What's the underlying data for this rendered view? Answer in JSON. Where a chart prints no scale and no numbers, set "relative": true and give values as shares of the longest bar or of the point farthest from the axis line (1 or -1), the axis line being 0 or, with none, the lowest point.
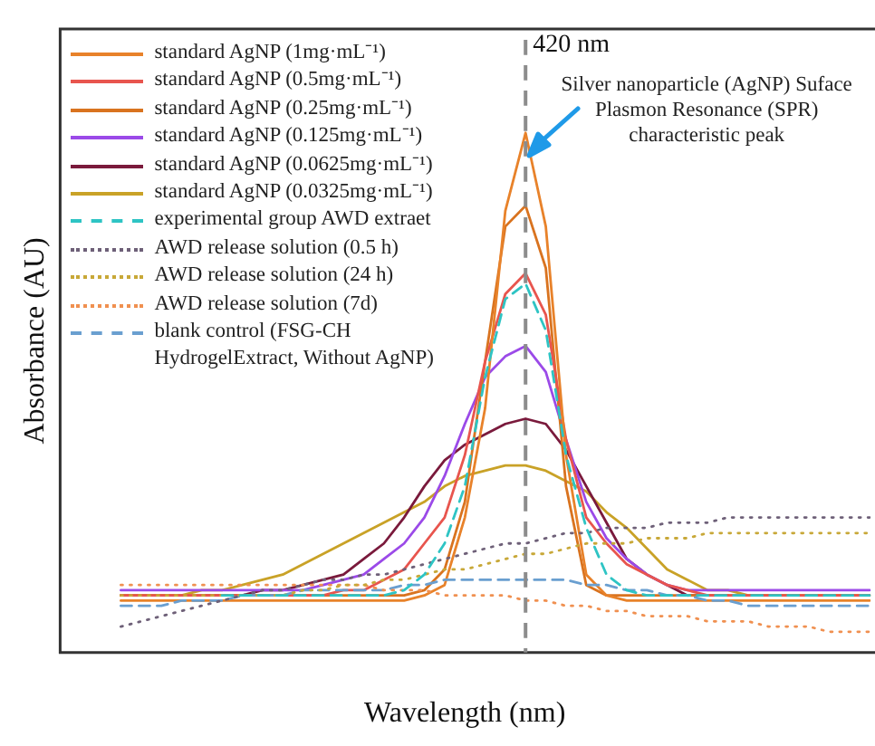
{
  "chart_data": {
    "type": "line",
    "relative": true,
    "xlabel": "Wavelength (nm)",
    "ylabel": "Absorbance (AU)",
    "legend": "top left",
    "marker": "none",
    "categories": [
      null,
      null,
      null,
      null,
      null,
      null,
      null,
      null,
      null,
      null,
      null,
      null,
      null,
      null,
      null,
      null,
      null,
      null,
      null,
      null,
      null,
      null,
      null,
      null,
      null,
      null,
      null,
      null,
      null,
      null,
      null,
      null,
      null,
      null,
      null,
      null,
      null,
      null,
      null,
      null,
      null
    ],
    "annotations": [
      "420 nm",
      "Silver nanoparticle (AgNP) Suface Plasmon Resonance (SPR) characteristic peak"
    ],
    "series": [
      {
        "name": "standard AgNP (1mg·mL⁻¹)",
        "color": "#e8822a",
        "line_style": "solid",
        "values": [
          null,
          null,
          null,
          0.1,
          0.1,
          0.1,
          0.1,
          0.1,
          0.1,
          0.1,
          0.1,
          0.1,
          0.1,
          0.1,
          0.1,
          0.1,
          0.1,
          0.1,
          0.11,
          0.13,
          0.26,
          0.47,
          0.85,
          1,
          0.82,
          0.38,
          0.15,
          0.11,
          0.1,
          0.1,
          0.1,
          0.1,
          0.1,
          0.1,
          0.1,
          0.1,
          0.1,
          0.1,
          0.1,
          0.1,
          0.1
        ]
      },
      {
        "name": "standard AgNP (0.5mg·mL⁻¹)",
        "color": "#e8554e",
        "line_style": "solid",
        "values": [
          null,
          null,
          null,
          0.11,
          0.11,
          0.11,
          0.11,
          0.11,
          0.11,
          0.11,
          0.11,
          0.11,
          0.11,
          0.11,
          0.12,
          0.12,
          0.14,
          0.16,
          0.21,
          0.26,
          0.38,
          0.56,
          0.69,
          0.73,
          0.65,
          0.41,
          0.26,
          0.21,
          0.17,
          0.15,
          0.13,
          0.12,
          0.11,
          0.11,
          0.11,
          0.11,
          0.11,
          0.11,
          0.11,
          0.11,
          0.11
        ]
      },
      {
        "name": "standard AgNP (0.25mg·mL⁻¹)",
        "color": "#d9731f",
        "line_style": "solid",
        "values": [
          null,
          null,
          null,
          0.11,
          0.11,
          0.11,
          0.11,
          0.11,
          0.11,
          0.11,
          0.11,
          0.11,
          0.11,
          0.11,
          0.11,
          0.11,
          0.11,
          0.11,
          0.12,
          0.16,
          0.29,
          0.56,
          0.82,
          0.86,
          0.74,
          0.32,
          0.13,
          0.11,
          0.11,
          0.11,
          0.11,
          0.11,
          0.11,
          0.11,
          0.11,
          0.11,
          0.11,
          0.11,
          0.11,
          0.11,
          0.11
        ]
      },
      {
        "name": "standard AgNP (0.125mg·mL⁻¹)",
        "color": "#9b4ae8",
        "line_style": "solid",
        "values": [
          null,
          null,
          null,
          0.12,
          0.12,
          0.12,
          0.12,
          0.12,
          0.12,
          0.12,
          0.12,
          0.12,
          0.12,
          0.13,
          0.14,
          0.15,
          0.18,
          0.21,
          0.26,
          0.34,
          0.44,
          0.53,
          0.57,
          0.59,
          0.54,
          0.41,
          0.29,
          0.22,
          0.18,
          0.15,
          0.13,
          0.12,
          0.12,
          0.12,
          0.12,
          0.12,
          0.12,
          0.12,
          0.12,
          0.12,
          0.12
        ]
      },
      {
        "name": "standard AgNP (0.0625mg·mL⁻¹)",
        "color": "#7a1a3c",
        "line_style": "solid",
        "values": [
          null,
          null,
          null,
          null,
          null,
          null,
          null,
          0.11,
          0.11,
          0.11,
          0.12,
          0.12,
          0.13,
          0.14,
          0.15,
          0.18,
          0.21,
          0.26,
          0.32,
          0.37,
          0.4,
          0.42,
          0.44,
          0.45,
          0.44,
          0.39,
          0.32,
          0.25,
          0.18,
          0.15,
          0.13,
          0.11,
          0.11,
          0.11,
          null,
          null,
          null,
          null,
          null,
          null,
          null
        ]
      },
      {
        "name": "standard AgNP (0.0325mg·mL⁻¹)",
        "color": "#c9a227",
        "line_style": "solid",
        "values": [
          null,
          null,
          null,
          0.11,
          0.11,
          0.11,
          0.11,
          0.12,
          0.12,
          0.13,
          0.14,
          0.15,
          0.17,
          0.19,
          0.21,
          0.23,
          0.25,
          0.27,
          0.29,
          0.32,
          0.34,
          0.35,
          0.36,
          0.36,
          0.35,
          0.33,
          0.31,
          0.27,
          0.24,
          0.2,
          0.16,
          0.14,
          0.12,
          0.12,
          0.11,
          0.11,
          0.11,
          0.11,
          0.11,
          0.11,
          0.11
        ]
      },
      {
        "name": "experimental group AWD extraet",
        "color": "#2ec4c4",
        "line_style": "dashed",
        "values": [
          null,
          null,
          null,
          null,
          null,
          null,
          null,
          null,
          0.11,
          0.11,
          0.11,
          0.11,
          0.11,
          0.11,
          0.11,
          0.11,
          0.11,
          0.12,
          0.15,
          0.21,
          0.32,
          0.53,
          0.68,
          0.71,
          0.62,
          0.38,
          0.24,
          0.15,
          0.12,
          0.11,
          0.11,
          0.11,
          0.11,
          0.11,
          0.11,
          0.11,
          0.11,
          0.11,
          0.11,
          0.11,
          0.11
        ]
      },
      {
        "name": "AWD release solution (0.5 h)",
        "color": "#6e6078",
        "line_style": "dotted",
        "values": [
          null,
          null,
          null,
          0.05,
          0.06,
          0.07,
          0.08,
          0.09,
          0.1,
          0.11,
          0.12,
          0.12,
          0.13,
          0.14,
          0.14,
          0.15,
          0.15,
          0.16,
          0.17,
          0.18,
          0.19,
          0.2,
          0.21,
          0.21,
          0.22,
          0.23,
          0.23,
          0.24,
          0.24,
          0.24,
          0.25,
          0.25,
          0.25,
          0.26,
          0.26,
          0.26,
          0.26,
          0.26,
          0.26,
          0.26,
          0.26
        ]
      },
      {
        "name": "AWD release solution (24 h)",
        "color": "#c8a838",
        "line_style": "dotted",
        "values": [
          null,
          null,
          null,
          0.11,
          0.11,
          0.11,
          0.11,
          0.11,
          0.11,
          0.11,
          0.11,
          0.11,
          0.12,
          0.12,
          0.13,
          0.13,
          0.14,
          0.14,
          0.15,
          0.16,
          0.16,
          0.17,
          0.18,
          0.19,
          0.19,
          0.2,
          0.21,
          0.21,
          0.21,
          0.22,
          0.22,
          0.22,
          0.23,
          0.23,
          0.23,
          0.23,
          0.23,
          0.23,
          0.23,
          0.23,
          0.23
        ]
      },
      {
        "name": "AWD release solution (7d)",
        "color": "#f09050",
        "line_style": "dotted",
        "values": [
          null,
          null,
          null,
          0.13,
          0.13,
          0.13,
          0.13,
          0.13,
          0.13,
          0.13,
          0.13,
          0.13,
          0.13,
          0.13,
          0.13,
          0.13,
          0.12,
          0.12,
          0.12,
          0.11,
          0.11,
          0.11,
          0.11,
          0.1,
          0.1,
          0.09,
          0.09,
          0.08,
          0.08,
          0.07,
          0.07,
          0.07,
          0.06,
          0.06,
          0.06,
          0.05,
          0.05,
          0.05,
          0.04,
          0.04,
          0.04
        ]
      },
      {
        "name": "blank control (FSG-CH HydrogelExtract, Without AgNP)",
        "color": "#6a9fd0",
        "line_style": "dashed",
        "values": [
          null,
          null,
          null,
          0.09,
          0.09,
          0.09,
          0.1,
          0.1,
          0.1,
          0.11,
          0.11,
          0.11,
          0.12,
          0.12,
          0.12,
          0.12,
          0.12,
          0.13,
          0.13,
          0.14,
          0.14,
          0.14,
          0.14,
          0.14,
          0.14,
          0.14,
          0.13,
          0.13,
          0.12,
          0.12,
          0.11,
          0.11,
          0.1,
          0.1,
          0.09,
          0.09,
          0.09,
          0.09,
          0.09,
          0.09,
          0.09
        ]
      }
    ]
  }
}
